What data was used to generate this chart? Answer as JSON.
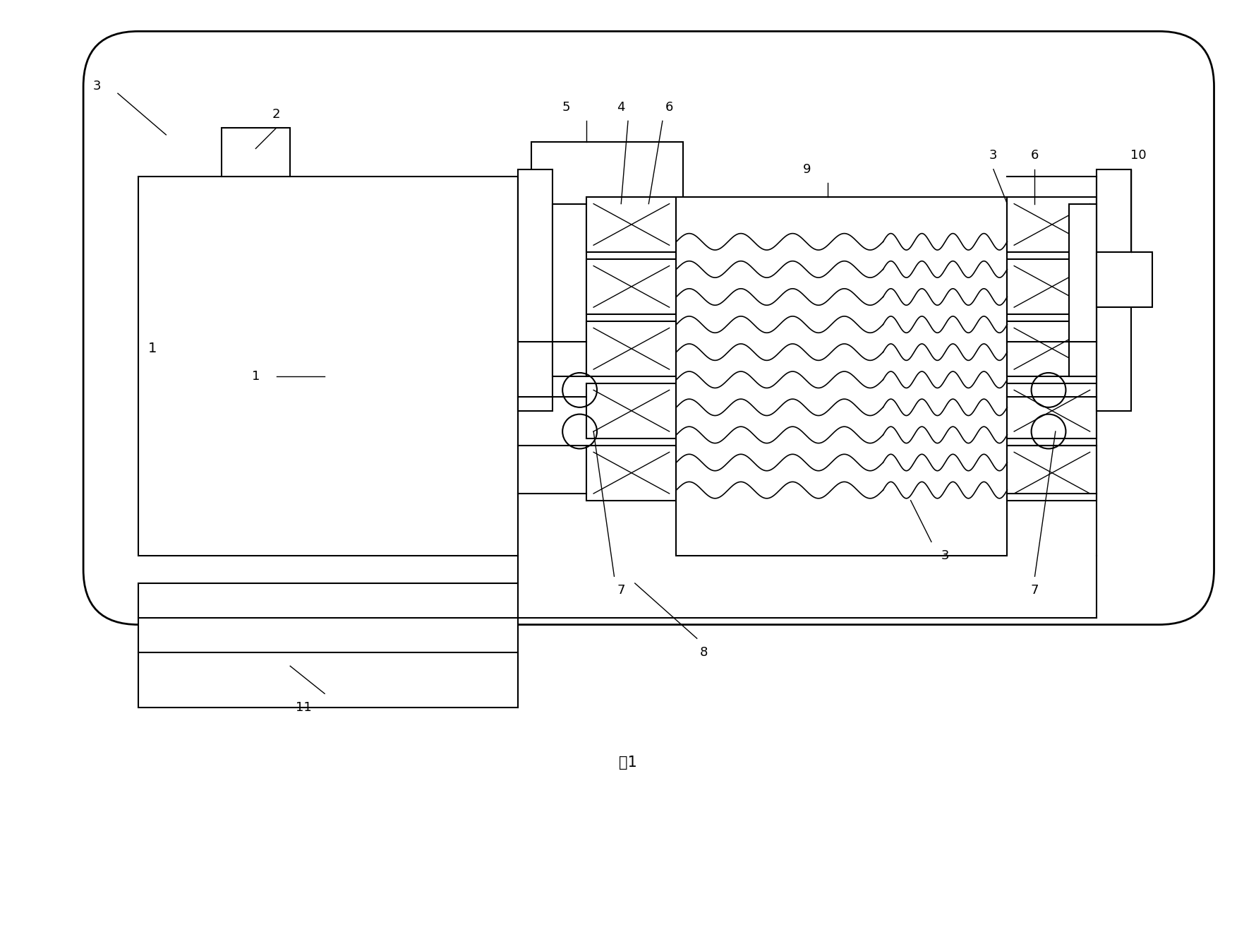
{
  "bg_color": "#ffffff",
  "line_color": "#000000",
  "title": "图1",
  "fig_width": 17.8,
  "fig_height": 13.1,
  "dpi": 100
}
